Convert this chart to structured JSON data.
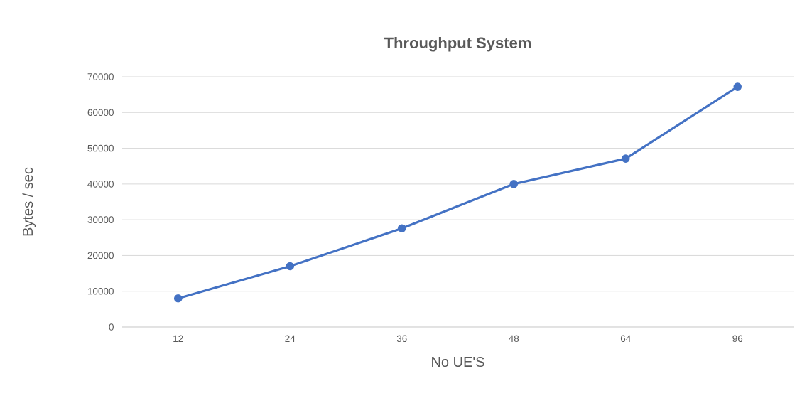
{
  "chart_data": {
    "type": "line",
    "title": "Throughput System",
    "xlabel": "No UE'S",
    "ylabel": "Bytes / sec",
    "categories": [
      "12",
      "24",
      "36",
      "48",
      "64",
      "96"
    ],
    "series": [
      {
        "color": "#4472c4",
        "values": [
          8000,
          17000,
          27600,
          40000,
          47100,
          67200
        ]
      }
    ],
    "ylim": [
      0,
      70000
    ],
    "yticks": [
      0,
      10000,
      20000,
      30000,
      40000,
      50000,
      60000,
      70000
    ],
    "grid": "y",
    "marker": "circle",
    "line_style": "solid"
  }
}
